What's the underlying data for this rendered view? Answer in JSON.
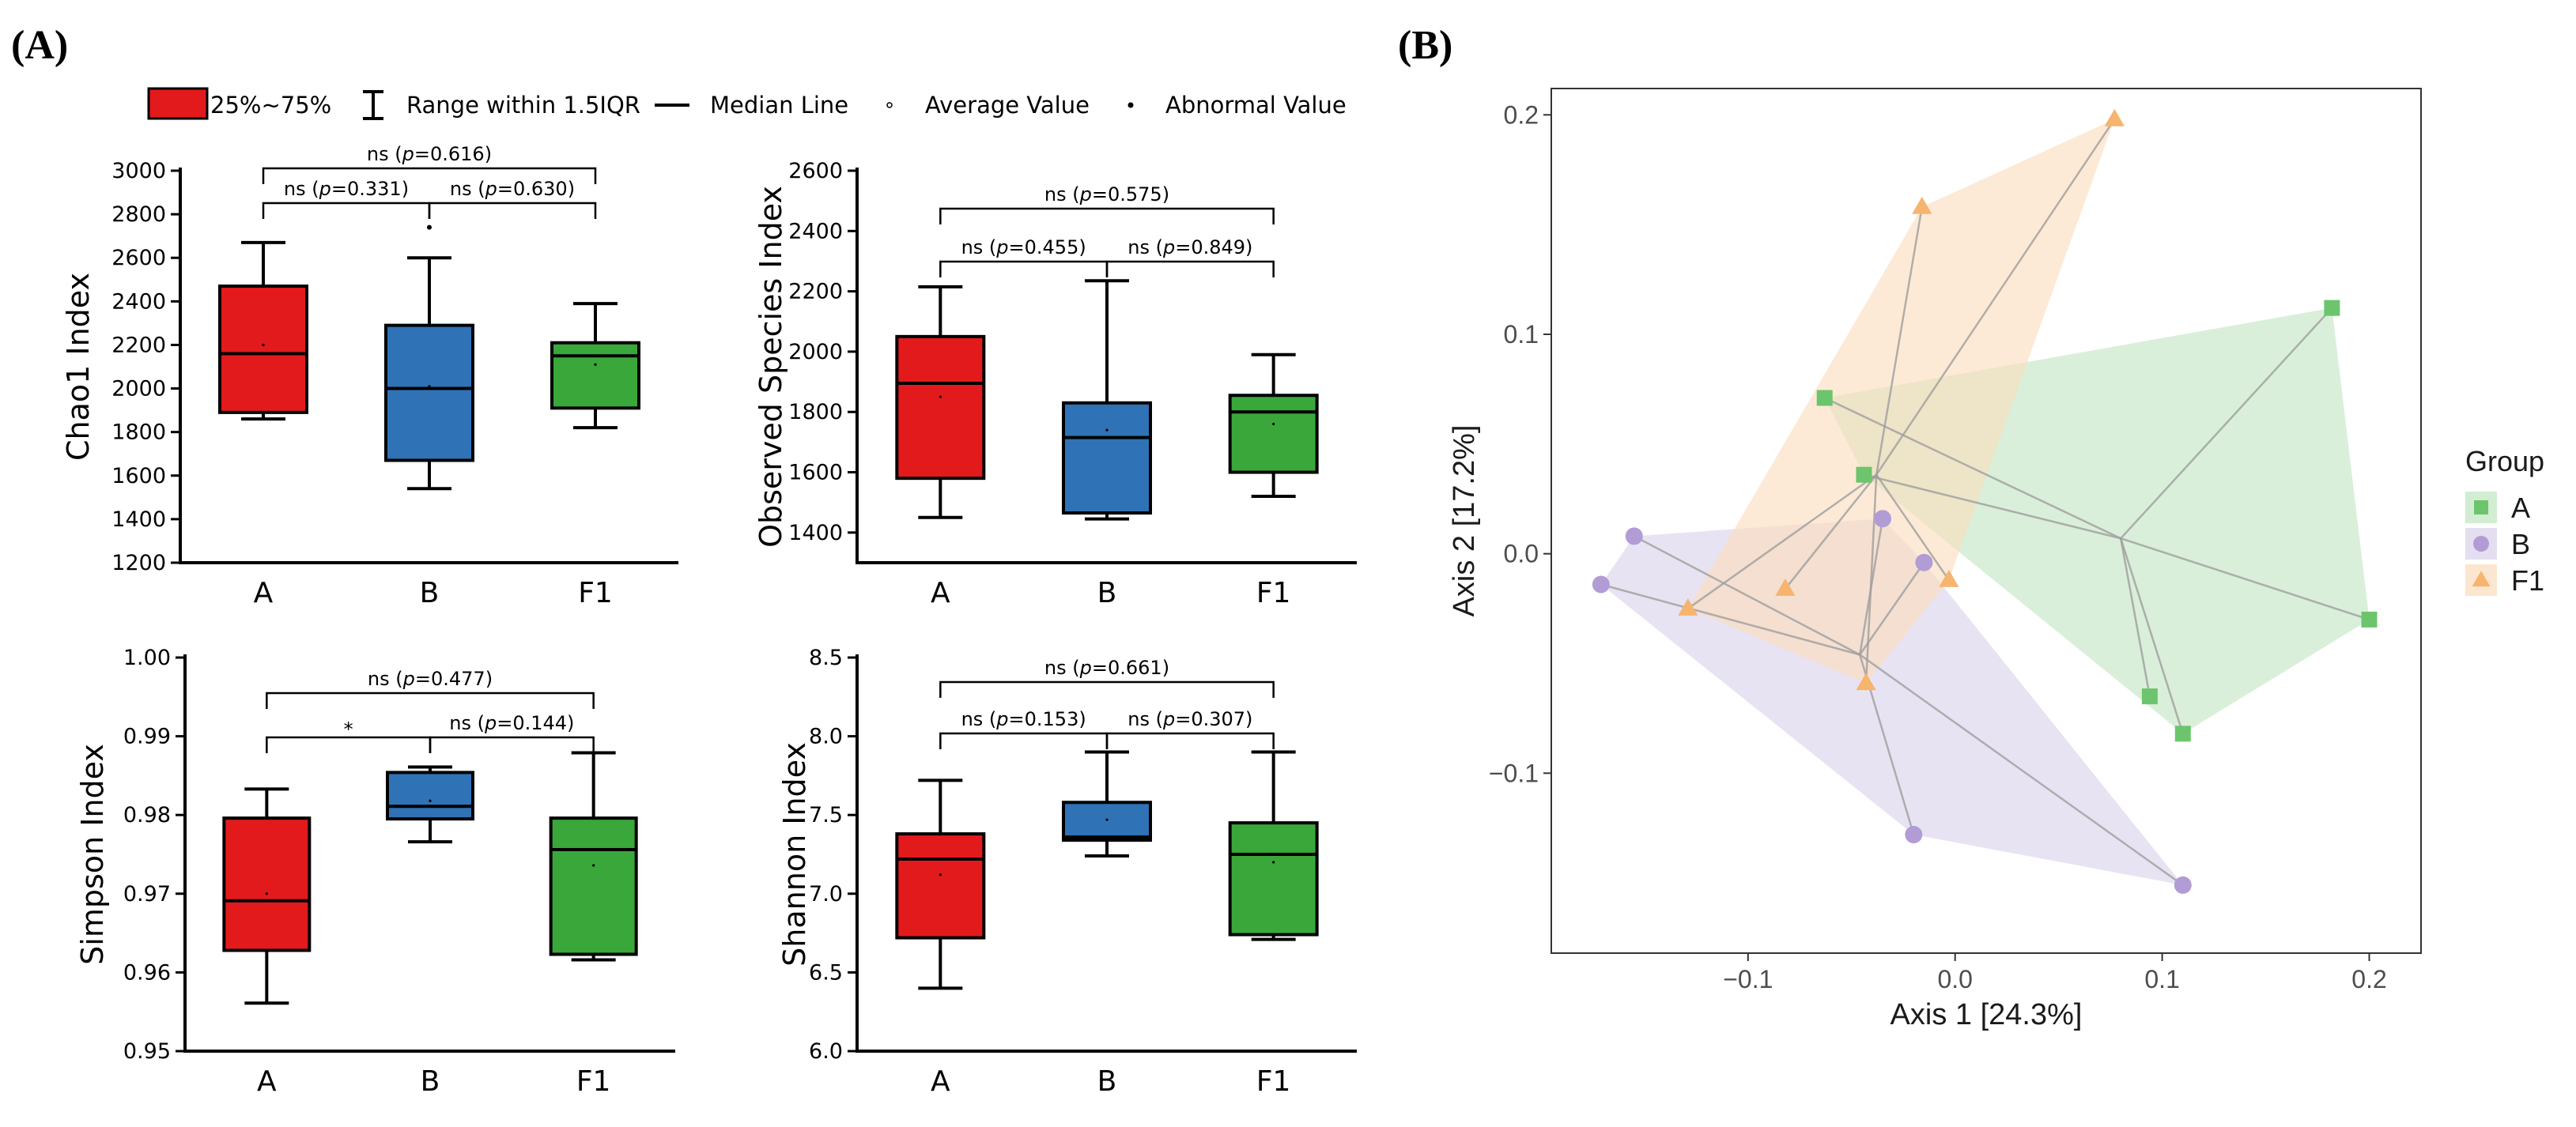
{
  "panels": {
    "a_tag": "(A)",
    "b_tag": "(B)"
  },
  "box_legend": {
    "box": "25%~75%",
    "range": "Range within 1.5IQR",
    "median": "Median Line",
    "average": "Average Value",
    "abnormal": "Abnormal Value"
  },
  "colors": {
    "A": "#e31a1c",
    "B": "#2f73b6",
    "F1": "#3aa73a"
  },
  "chart_data": [
    {
      "type": "box",
      "id": "chao1",
      "ylabel": "Chao1 Index",
      "categories": [
        "A",
        "B",
        "F1"
      ],
      "ylim": [
        1200,
        3000
      ],
      "yticks": [
        1200,
        1400,
        1600,
        1800,
        2000,
        2200,
        2400,
        2600,
        2800,
        3000
      ],
      "ytick_labels": [
        "1200",
        "1400",
        "1600",
        "1800",
        "2000",
        "2200",
        "2400",
        "2600",
        "2800",
        "3000"
      ],
      "boxes": [
        {
          "name": "A",
          "min": 1860,
          "q1": 1890,
          "median": 2160,
          "q3": 2470,
          "max": 2670,
          "mean": 2200
        },
        {
          "name": "B",
          "min": 1540,
          "q1": 1670,
          "median": 2000,
          "q3": 2290,
          "max": 2600,
          "mean": 2010
        },
        {
          "name": "F1",
          "min": 1820,
          "q1": 1910,
          "median": 2150,
          "q3": 2210,
          "max": 2390,
          "mean": 2110
        }
      ],
      "outliers": [
        {
          "group": "B",
          "value": 2740
        }
      ],
      "comparisons": [
        {
          "from": "A",
          "to": "B",
          "text": "ns (p=0.331)",
          "sig": "ns",
          "p": "p",
          "val": "=0.331"
        },
        {
          "from": "B",
          "to": "F1",
          "text": "ns (p=0.630)",
          "sig": "ns",
          "p": "p",
          "val": "=0.630"
        },
        {
          "from": "A",
          "to": "F1",
          "text": "ns (p=0.616)",
          "sig": "ns",
          "p": "p",
          "val": "=0.616"
        }
      ]
    },
    {
      "type": "box",
      "id": "observed",
      "ylabel": "Observed Species Index",
      "categories": [
        "A",
        "B",
        "F1"
      ],
      "ylim": [
        1300,
        2600
      ],
      "yticks": [
        1400,
        1600,
        1800,
        2000,
        2200,
        2400,
        2600
      ],
      "ytick_labels": [
        "1400",
        "1600",
        "1800",
        "2000",
        "2200",
        "2400",
        "2600"
      ],
      "boxes": [
        {
          "name": "A",
          "min": 1450,
          "q1": 1580,
          "median": 1895,
          "q3": 2050,
          "max": 2215,
          "mean": 1850
        },
        {
          "name": "B",
          "min": 1445,
          "q1": 1465,
          "median": 1715,
          "q3": 1830,
          "max": 2235,
          "mean": 1740
        },
        {
          "name": "F1",
          "min": 1520,
          "q1": 1600,
          "median": 1800,
          "q3": 1855,
          "max": 1990,
          "mean": 1760
        }
      ],
      "outliers": [],
      "comparisons": [
        {
          "from": "A",
          "to": "B",
          "text": "ns (p=0.455)",
          "sig": "ns",
          "p": "p",
          "val": "=0.455"
        },
        {
          "from": "B",
          "to": "F1",
          "text": "ns (p=0.849)",
          "sig": "ns",
          "p": "p",
          "val": "=0.849"
        },
        {
          "from": "A",
          "to": "F1",
          "text": "ns (p=0.575)",
          "sig": "ns",
          "p": "p",
          "val": "=0.575"
        }
      ]
    },
    {
      "type": "box",
      "id": "simpson",
      "ylabel": "Simpson Index",
      "categories": [
        "A",
        "B",
        "F1"
      ],
      "ylim": [
        0.95,
        1.0
      ],
      "yticks": [
        0.95,
        0.96,
        0.97,
        0.98,
        0.99,
        1.0
      ],
      "ytick_labels": [
        "0.95",
        "0.96",
        "0.97",
        "0.98",
        "0.99",
        "1.00"
      ],
      "boxes": [
        {
          "name": "A",
          "min": 0.9561,
          "q1": 0.9628,
          "median": 0.9691,
          "q3": 0.9796,
          "max": 0.9833,
          "mean": 0.97
        },
        {
          "name": "B",
          "min": 0.9766,
          "q1": 0.9795,
          "median": 0.9811,
          "q3": 0.9854,
          "max": 0.9861,
          "mean": 0.9818
        },
        {
          "name": "F1",
          "min": 0.9616,
          "q1": 0.9623,
          "median": 0.9756,
          "q3": 0.9796,
          "max": 0.9879,
          "mean": 0.9736
        }
      ],
      "outliers": [],
      "comparisons": [
        {
          "from": "A",
          "to": "B",
          "text": "*",
          "sig": "*",
          "p": "",
          "val": ""
        },
        {
          "from": "B",
          "to": "F1",
          "text": "ns (p=0.144)",
          "sig": "ns",
          "p": "p",
          "val": "=0.144"
        },
        {
          "from": "A",
          "to": "F1",
          "text": "ns (p=0.477)",
          "sig": "ns",
          "p": "p",
          "val": "=0.477"
        }
      ]
    },
    {
      "type": "box",
      "id": "shannon",
      "ylabel": "Shannon Index",
      "categories": [
        "A",
        "B",
        "F1"
      ],
      "ylim": [
        6.0,
        8.5
      ],
      "yticks": [
        6.0,
        6.5,
        7.0,
        7.5,
        8.0,
        8.5
      ],
      "ytick_labels": [
        "6.0",
        "6.5",
        "7.0",
        "7.5",
        "8.0",
        "8.5"
      ],
      "boxes": [
        {
          "name": "A",
          "min": 6.4,
          "q1": 6.72,
          "median": 7.22,
          "q3": 7.38,
          "max": 7.72,
          "mean": 7.12
        },
        {
          "name": "B",
          "min": 7.24,
          "q1": 7.34,
          "median": 7.36,
          "q3": 7.58,
          "max": 7.9,
          "mean": 7.47
        },
        {
          "name": "F1",
          "min": 6.71,
          "q1": 6.74,
          "median": 7.25,
          "q3": 7.45,
          "max": 7.9,
          "mean": 7.2
        }
      ],
      "outliers": [],
      "comparisons": [
        {
          "from": "A",
          "to": "B",
          "text": "ns (p=0.153)",
          "sig": "ns",
          "p": "p",
          "val": "=0.153"
        },
        {
          "from": "B",
          "to": "F1",
          "text": "ns (p=0.307)",
          "sig": "ns",
          "p": "p",
          "val": "=0.307"
        },
        {
          "from": "A",
          "to": "F1",
          "text": "ns (p=0.661)",
          "sig": "ns",
          "p": "p",
          "val": "=0.661"
        }
      ]
    },
    {
      "type": "scatter",
      "id": "pcoa",
      "xlabel": "Axis 1 [24.3%]",
      "ylabel": "Axis 2 [17.2%]",
      "xlim": [
        -0.195,
        0.225
      ],
      "ylim": [
        -0.182,
        0.212
      ],
      "xticks": [
        -0.1,
        0.0,
        0.1,
        0.2
      ],
      "xtick_labels": [
        "−0.1",
        "0.0",
        "0.1",
        "0.2"
      ],
      "yticks": [
        -0.1,
        0.0,
        0.1,
        0.2
      ],
      "ytick_labels": [
        "−0.1",
        "0.0",
        "0.1",
        "0.2"
      ],
      "legend_title": "Group",
      "groups": [
        {
          "name": "A",
          "color": "#6cc56c",
          "hull_color": "#bfe5bf",
          "shape": "square",
          "centroid": [
            0.08,
            0.007
          ],
          "points": [
            [
              -0.063,
              0.071
            ],
            [
              0.182,
              0.112
            ],
            [
              0.2,
              -0.03
            ],
            [
              0.11,
              -0.082
            ],
            [
              0.094,
              -0.065
            ],
            [
              -0.044,
              0.036
            ]
          ]
        },
        {
          "name": "B",
          "color": "#b19cd6",
          "hull_color": "#d8d0ea",
          "shape": "circle",
          "centroid": [
            -0.046,
            -0.046
          ],
          "points": [
            [
              -0.171,
              -0.014
            ],
            [
              -0.155,
              0.008
            ],
            [
              -0.035,
              0.016
            ],
            [
              -0.015,
              -0.004
            ],
            [
              -0.02,
              -0.128
            ],
            [
              0.11,
              -0.151
            ]
          ]
        },
        {
          "name": "F1",
          "color": "#f6b46e",
          "hull_color": "#fbdcbb",
          "shape": "triangle",
          "centroid": [
            -0.038,
            0.036
          ],
          "points": [
            [
              0.077,
              0.198
            ],
            [
              -0.016,
              0.158
            ],
            [
              -0.129,
              -0.025
            ],
            [
              -0.082,
              -0.016
            ],
            [
              -0.043,
              -0.059
            ],
            [
              -0.003,
              -0.012
            ]
          ]
        }
      ]
    }
  ]
}
